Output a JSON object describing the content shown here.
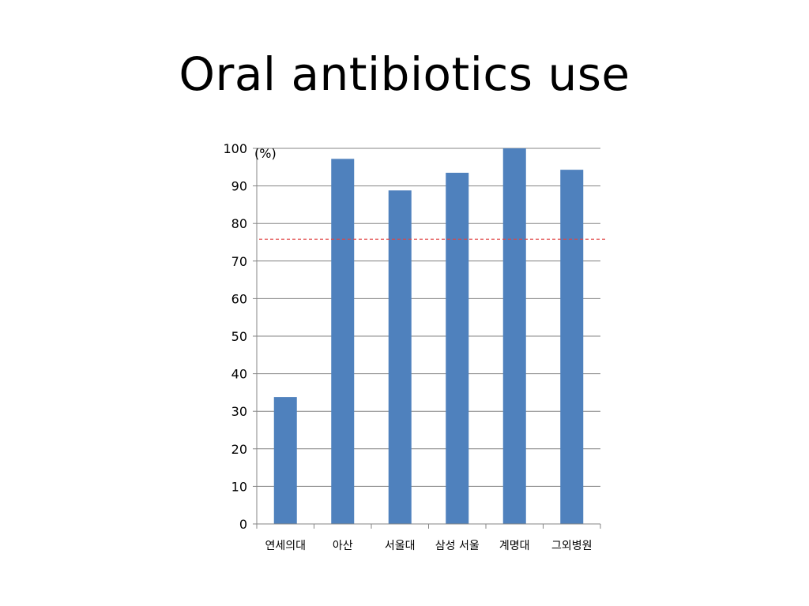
{
  "slide": {
    "title": "Oral antibiotics use"
  },
  "chart_data": {
    "type": "bar",
    "title": "",
    "ylabel": "(%)",
    "xlabel": "",
    "categories": [
      "연세의대",
      "아산",
      "서울대",
      "삼성 서울",
      "계명대",
      "그외병원"
    ],
    "values": [
      33.8,
      97.2,
      88.8,
      93.5,
      100,
      94.3
    ],
    "ylim": [
      0,
      100
    ],
    "yticks": [
      0,
      10,
      20,
      30,
      40,
      50,
      60,
      70,
      80,
      90,
      100
    ],
    "grid": true,
    "reference_line": 75.8,
    "colors": {
      "bar": "#4f81bd",
      "grid": "#868686",
      "axis": "#868686",
      "reference_line": "#e04545"
    }
  }
}
